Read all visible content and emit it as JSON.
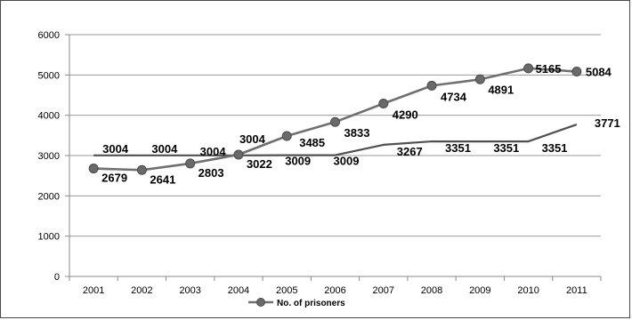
{
  "chart_data": {
    "type": "line",
    "categories": [
      "2001",
      "2002",
      "2003",
      "2004",
      "2005",
      "2006",
      "2007",
      "2008",
      "2009",
      "2010",
      "2011"
    ],
    "ylim": [
      0,
      6000
    ],
    "yticks": [
      "0",
      "1000",
      "2000",
      "3000",
      "4000",
      "5000",
      "6000"
    ],
    "grid": "horizontal",
    "legend_position": "bottom",
    "series": [
      {
        "name": "No. of prisoners",
        "values": [
          2679,
          2641,
          2803,
          3022,
          3485,
          3833,
          4290,
          4734,
          4891,
          5165,
          5084
        ],
        "labels": [
          "2679",
          "2641",
          "2803",
          "3022",
          "3485",
          "3833",
          "4290",
          "4734",
          "4891",
          "5165",
          "5084"
        ],
        "markers": true,
        "color": "#707070"
      },
      {
        "name": "",
        "values": [
          3004,
          3004,
          3004,
          3004,
          3009,
          3009,
          3267,
          3351,
          3351,
          3351,
          3771
        ],
        "labels": [
          "3004",
          "3004",
          "3004",
          "3004",
          "3009",
          "3009",
          "3267",
          "3351",
          "3351",
          "3351",
          "3771"
        ],
        "markers": false,
        "color": "#505050"
      }
    ]
  }
}
